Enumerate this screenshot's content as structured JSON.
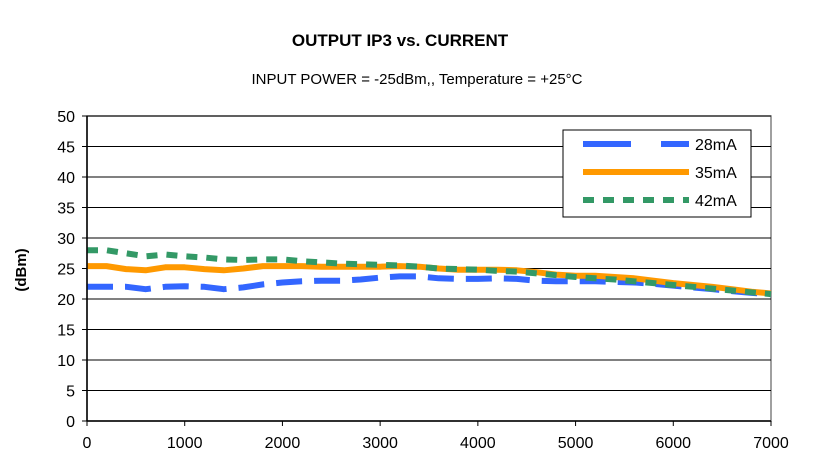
{
  "chart_data": {
    "type": "line",
    "title": "OUTPUT IP3 vs. CURRENT",
    "subtitle": "INPUT POWER = -25dBm,, Temperature = +25°C",
    "xlabel": "",
    "ylabel": "(dBm)",
    "xlim": [
      0,
      7000
    ],
    "ylim": [
      0,
      50
    ],
    "x_ticks": [
      0,
      1000,
      2000,
      3000,
      4000,
      5000,
      6000,
      7000
    ],
    "y_ticks": [
      0,
      5,
      10,
      15,
      20,
      25,
      30,
      35,
      40,
      45,
      50
    ],
    "grid": "y-major",
    "legend_position": "top-right",
    "series": [
      {
        "name": "28mA",
        "color": "#3366FF",
        "style": "long-dash",
        "x": [
          0,
          200,
          400,
          600,
          800,
          1000,
          1200,
          1400,
          1600,
          1800,
          2000,
          2200,
          2400,
          2600,
          2800,
          3000,
          3200,
          3400,
          3600,
          3800,
          4000,
          4200,
          4400,
          4600,
          4800,
          5000,
          5200,
          5400,
          5600,
          5800,
          6000,
          6200,
          6400,
          6600,
          6800,
          7000
        ],
        "values": [
          22.0,
          22.0,
          22.0,
          21.6,
          22.0,
          22.1,
          22.0,
          21.6,
          21.9,
          22.4,
          22.7,
          22.9,
          23.0,
          23.0,
          23.2,
          23.5,
          23.7,
          23.7,
          23.4,
          23.3,
          23.3,
          23.4,
          23.3,
          23.0,
          22.9,
          22.9,
          22.9,
          22.8,
          22.7,
          22.5,
          22.2,
          21.9,
          21.6,
          21.3,
          21.0,
          20.8
        ]
      },
      {
        "name": "35mA",
        "color": "#FF9900",
        "style": "solid",
        "x": [
          0,
          200,
          400,
          600,
          800,
          1000,
          1200,
          1400,
          1600,
          1800,
          2000,
          2200,
          2400,
          2600,
          2800,
          3000,
          3200,
          3400,
          3600,
          3800,
          4000,
          4200,
          4400,
          4600,
          4800,
          5000,
          5200,
          5400,
          5600,
          5800,
          6000,
          6200,
          6400,
          6600,
          6800,
          7000
        ],
        "values": [
          25.4,
          25.4,
          24.9,
          24.7,
          25.2,
          25.2,
          24.9,
          24.7,
          25.0,
          25.4,
          25.4,
          25.4,
          25.3,
          25.3,
          25.3,
          25.3,
          25.4,
          25.3,
          25.0,
          24.8,
          24.8,
          24.8,
          24.7,
          24.4,
          24.0,
          23.8,
          23.8,
          23.6,
          23.4,
          23.0,
          22.6,
          22.3,
          22.0,
          21.6,
          21.2,
          20.9
        ]
      },
      {
        "name": "42mA",
        "color": "#339966",
        "style": "dash",
        "x": [
          0,
          200,
          400,
          600,
          800,
          1000,
          1200,
          1400,
          1600,
          1800,
          2000,
          2200,
          2400,
          2600,
          2800,
          3000,
          3200,
          3400,
          3600,
          3800,
          4000,
          4200,
          4400,
          4600,
          4800,
          5000,
          5200,
          5400,
          5600,
          5800,
          6000,
          6200,
          6400,
          6600,
          6800,
          7000
        ],
        "values": [
          28.0,
          28.0,
          27.5,
          27.0,
          27.3,
          27.0,
          26.8,
          26.5,
          26.4,
          26.5,
          26.5,
          26.2,
          26.0,
          25.8,
          25.7,
          25.6,
          25.5,
          25.3,
          25.0,
          24.9,
          24.8,
          24.6,
          24.5,
          24.2,
          23.9,
          23.6,
          23.4,
          23.2,
          22.9,
          22.6,
          22.3,
          22.0,
          21.7,
          21.4,
          21.1,
          20.8
        ]
      }
    ]
  }
}
